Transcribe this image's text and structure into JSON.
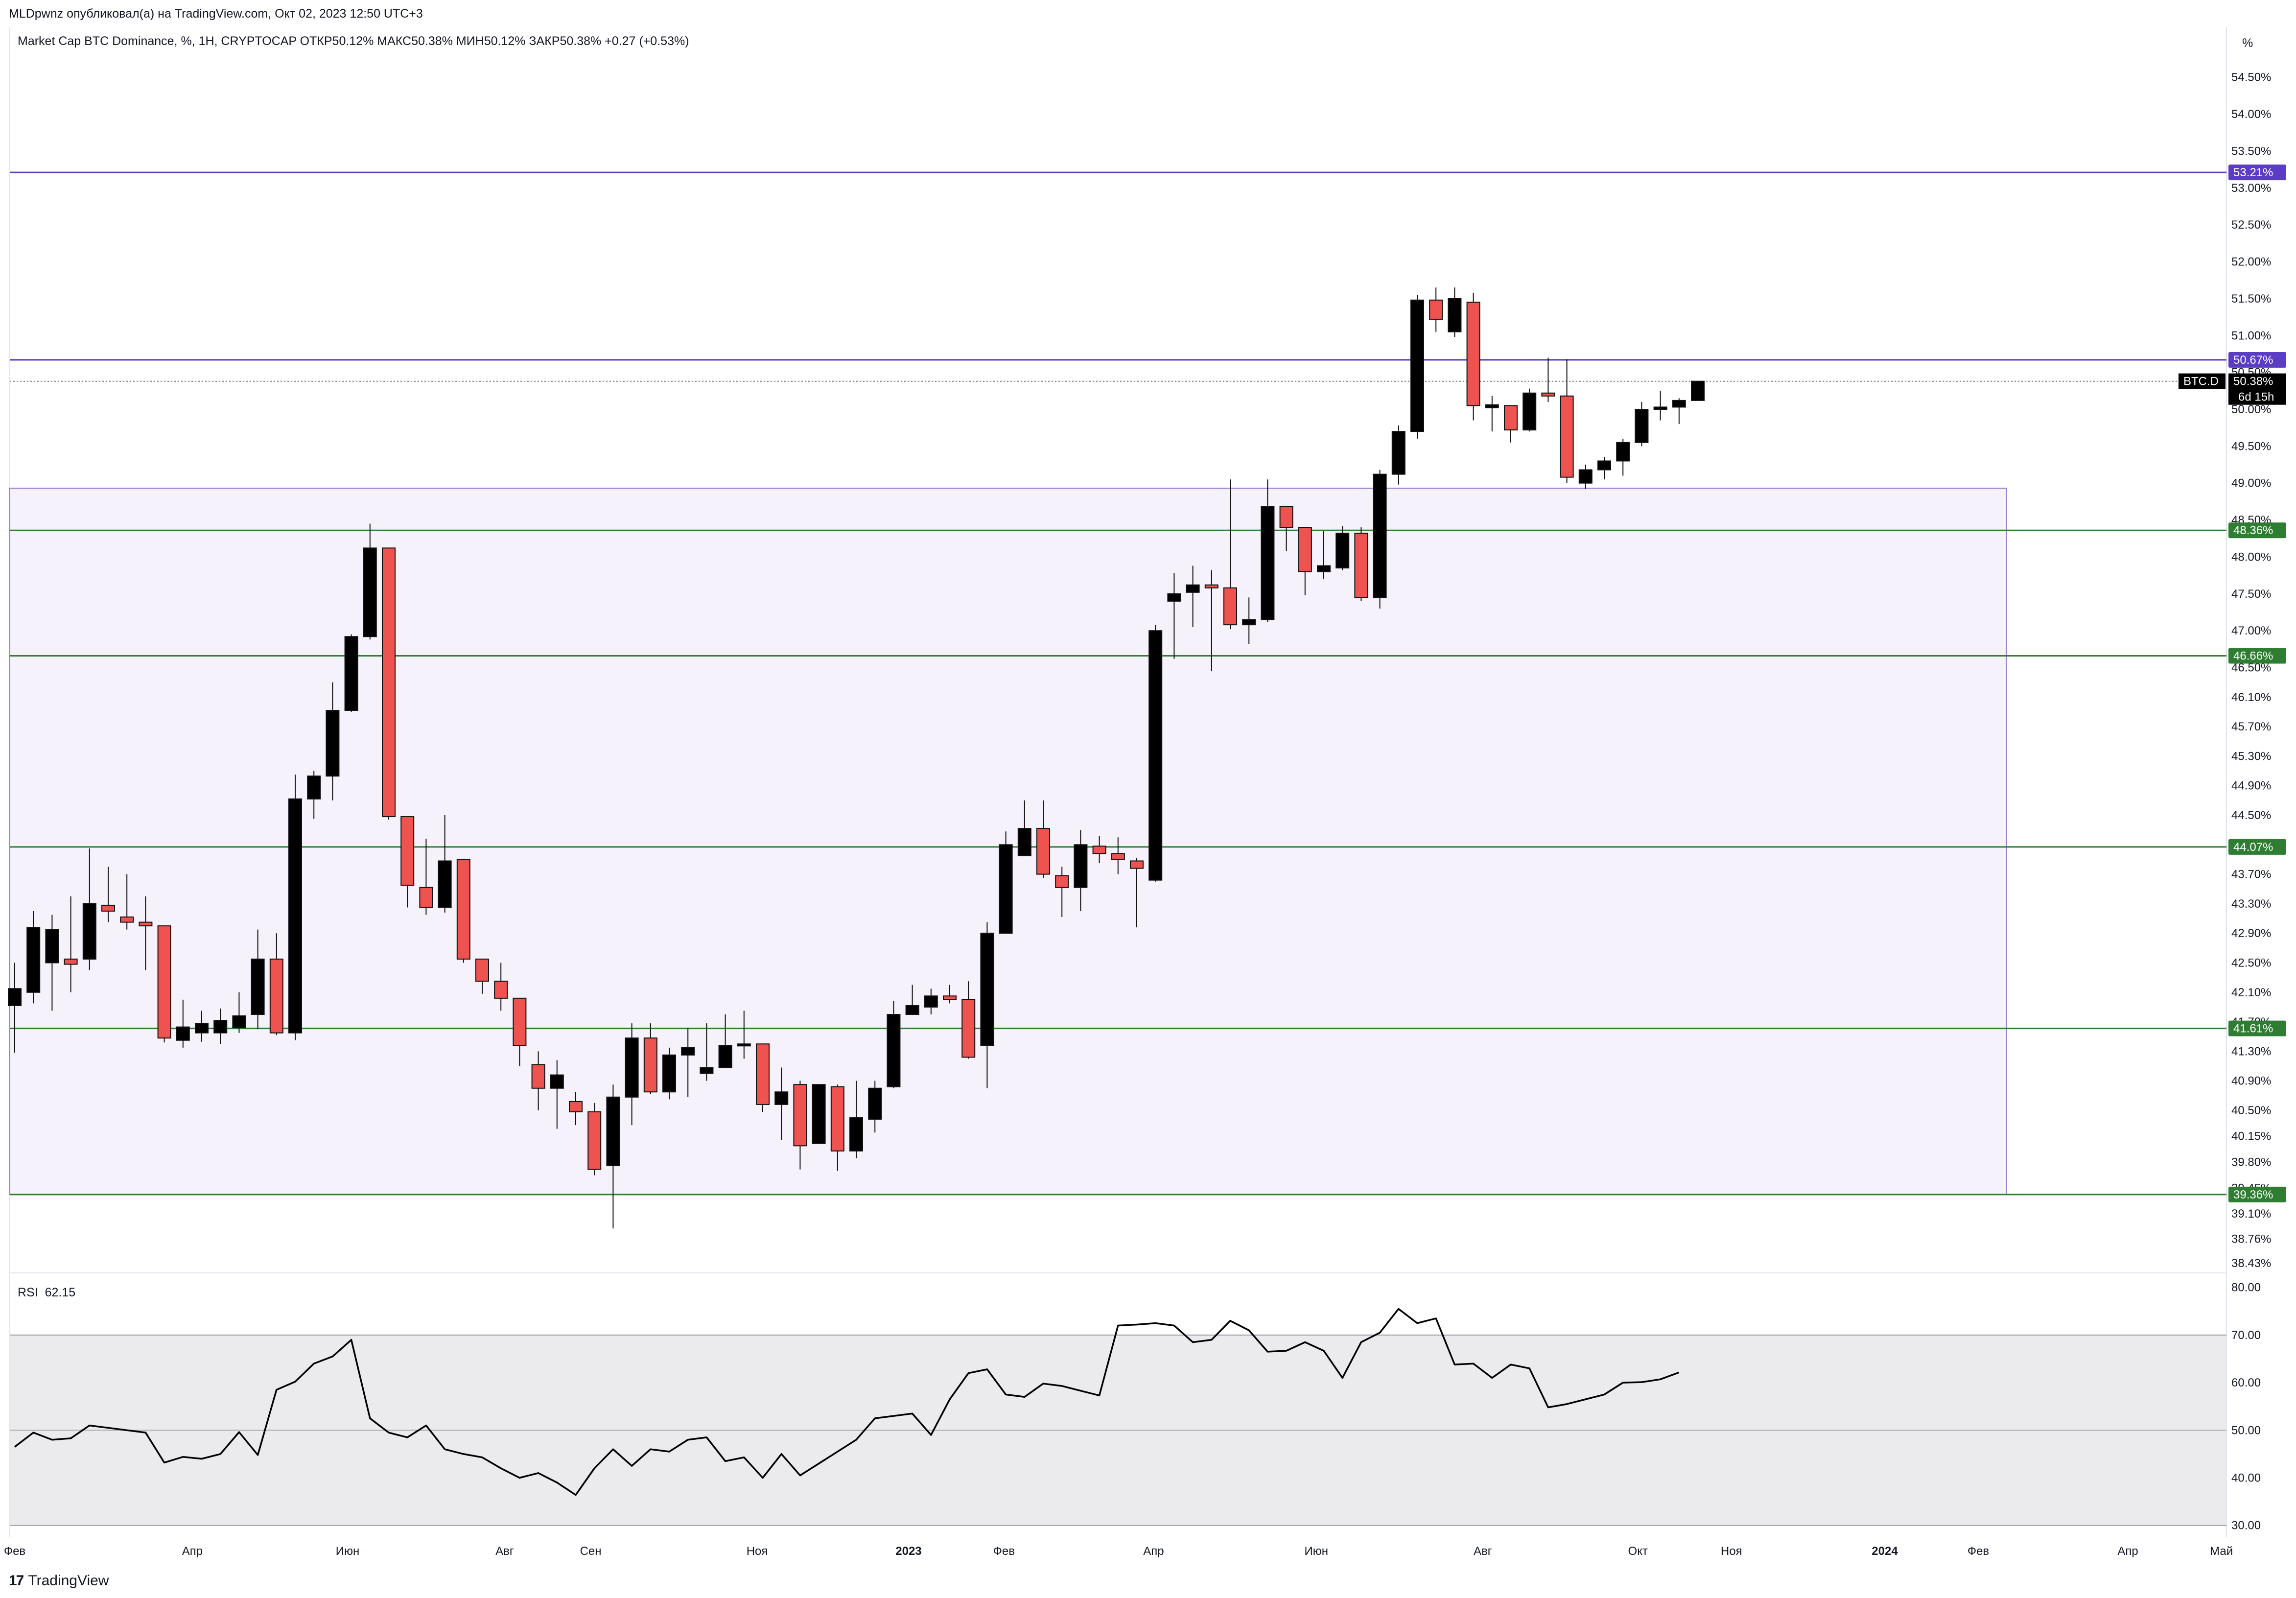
{
  "header": {
    "publisher": "MLDpwnz опубликовал(а) на TradingView.com, Окт 02, 2023 12:50 UTC+3",
    "legend": "Market Cap BTC Dominance, %, 1H, CRYPTOCAP  ОТКР50.12%  МАКС50.38%  МИН50.12%  ЗАКР50.38%  +0.27 (+0.53%)",
    "unit": "%"
  },
  "brand": {
    "name": "TradingView",
    "logo": "17"
  },
  "colors": {
    "bull": "#000000",
    "bear": "#ef5350",
    "level_purple": "#5b3cc4",
    "level_green": "#2e7d32",
    "zone_fill": "#f5f2fb",
    "zone_border": "#9575cd",
    "rsi_band": "#ebebed"
  },
  "chart_data": [
    {
      "type": "candlestick",
      "title": "Market Cap BTC Dominance, %, 1H, CRYPTOCAP",
      "ylim": [
        38.43,
        54.75
      ],
      "y_ticks": [
        "54.50%",
        "54.00%",
        "53.50%",
        "53.00%",
        "52.50%",
        "52.00%",
        "51.50%",
        "51.00%",
        "50.50%",
        "50.00%",
        "49.50%",
        "49.00%",
        "48.50%",
        "48.00%",
        "47.50%",
        "47.00%",
        "46.50%",
        "46.10%",
        "45.70%",
        "45.30%",
        "44.90%",
        "44.50%",
        "44.10%",
        "43.70%",
        "43.30%",
        "42.90%",
        "42.50%",
        "42.10%",
        "41.70%",
        "41.30%",
        "40.90%",
        "40.50%",
        "40.15%",
        "39.80%",
        "39.45%",
        "39.10%",
        "38.76%",
        "38.43%"
      ],
      "x_ticks": [
        {
          "t": 0.0,
          "label": "Фев",
          "bold": false
        },
        {
          "t": 9.5,
          "label": "Апр",
          "bold": false
        },
        {
          "t": 17.8,
          "label": "Июн",
          "bold": false
        },
        {
          "t": 26.2,
          "label": "Авг",
          "bold": false
        },
        {
          "t": 30.8,
          "label": "Сен",
          "bold": false
        },
        {
          "t": 39.7,
          "label": "Ноя",
          "bold": false
        },
        {
          "t": 47.8,
          "label": "2023",
          "bold": true
        },
        {
          "t": 52.9,
          "label": "Фев",
          "bold": false
        },
        {
          "t": 60.9,
          "label": "Апр",
          "bold": false
        },
        {
          "t": 69.6,
          "label": "Июн",
          "bold": false
        },
        {
          "t": 78.5,
          "label": "Авг",
          "bold": false
        },
        {
          "t": 86.8,
          "label": "Окт",
          "bold": false
        },
        {
          "t": 91.8,
          "label": "Ноя",
          "bold": false
        },
        {
          "t": 100.0,
          "label": "2024",
          "bold": true
        },
        {
          "t": 105.0,
          "label": "Фев",
          "bold": false
        },
        {
          "t": 113.0,
          "label": "Апр",
          "bold": false
        },
        {
          "t": 118.0,
          "label": "Май",
          "bold": false
        }
      ],
      "candles": [
        {
          "o": 41.92,
          "h": 42.5,
          "l": 41.28,
          "c": 42.15
        },
        {
          "o": 42.1,
          "h": 43.2,
          "l": 41.95,
          "c": 42.98
        },
        {
          "o": 42.5,
          "h": 43.15,
          "l": 41.85,
          "c": 42.95
        },
        {
          "o": 42.55,
          "h": 43.4,
          "l": 42.1,
          "c": 42.48
        },
        {
          "o": 42.55,
          "h": 44.05,
          "l": 42.4,
          "c": 43.3
        },
        {
          "o": 43.28,
          "h": 43.8,
          "l": 43.05,
          "c": 43.2
        },
        {
          "o": 43.12,
          "h": 43.7,
          "l": 42.95,
          "c": 43.05
        },
        {
          "o": 43.05,
          "h": 43.4,
          "l": 42.4,
          "c": 43.0
        },
        {
          "o": 43.0,
          "h": 43.0,
          "l": 41.42,
          "c": 41.48
        },
        {
          "o": 41.45,
          "h": 42.0,
          "l": 41.35,
          "c": 41.63
        },
        {
          "o": 41.55,
          "h": 41.85,
          "l": 41.43,
          "c": 41.68
        },
        {
          "o": 41.55,
          "h": 41.88,
          "l": 41.4,
          "c": 41.72
        },
        {
          "o": 41.62,
          "h": 42.1,
          "l": 41.55,
          "c": 41.78
        },
        {
          "o": 41.8,
          "h": 42.95,
          "l": 41.6,
          "c": 42.55
        },
        {
          "o": 42.55,
          "h": 42.9,
          "l": 41.52,
          "c": 41.55
        },
        {
          "o": 41.55,
          "h": 45.05,
          "l": 41.45,
          "c": 44.72
        },
        {
          "o": 44.72,
          "h": 45.1,
          "l": 44.45,
          "c": 45.03
        },
        {
          "o": 45.03,
          "h": 46.3,
          "l": 44.7,
          "c": 45.92
        },
        {
          "o": 45.92,
          "h": 46.95,
          "l": 45.9,
          "c": 46.92
        },
        {
          "o": 46.92,
          "h": 48.45,
          "l": 46.88,
          "c": 48.12
        },
        {
          "o": 48.12,
          "h": 48.12,
          "l": 44.44,
          "c": 44.48
        },
        {
          "o": 44.48,
          "h": 44.48,
          "l": 43.25,
          "c": 43.55
        },
        {
          "o": 43.52,
          "h": 44.18,
          "l": 43.15,
          "c": 43.25
        },
        {
          "o": 43.25,
          "h": 44.5,
          "l": 43.18,
          "c": 43.88
        },
        {
          "o": 43.9,
          "h": 43.9,
          "l": 42.5,
          "c": 42.55
        },
        {
          "o": 42.55,
          "h": 42.55,
          "l": 42.08,
          "c": 42.25
        },
        {
          "o": 42.25,
          "h": 42.5,
          "l": 41.85,
          "c": 42.02
        },
        {
          "o": 42.02,
          "h": 42.02,
          "l": 41.1,
          "c": 41.38
        },
        {
          "o": 41.12,
          "h": 41.3,
          "l": 40.5,
          "c": 40.8
        },
        {
          "o": 40.8,
          "h": 41.18,
          "l": 40.25,
          "c": 40.98
        },
        {
          "o": 40.62,
          "h": 40.75,
          "l": 40.3,
          "c": 40.48
        },
        {
          "o": 40.48,
          "h": 40.6,
          "l": 39.62,
          "c": 39.7
        },
        {
          "o": 39.75,
          "h": 40.85,
          "l": 38.9,
          "c": 40.68
        },
        {
          "o": 40.68,
          "h": 41.68,
          "l": 40.3,
          "c": 41.48
        },
        {
          "o": 41.48,
          "h": 41.68,
          "l": 40.72,
          "c": 40.75
        },
        {
          "o": 40.75,
          "h": 41.35,
          "l": 40.65,
          "c": 41.25
        },
        {
          "o": 41.25,
          "h": 41.62,
          "l": 40.68,
          "c": 41.35
        },
        {
          "o": 41.0,
          "h": 41.68,
          "l": 40.9,
          "c": 41.08
        },
        {
          "o": 41.08,
          "h": 41.8,
          "l": 41.1,
          "c": 41.38
        },
        {
          "o": 41.38,
          "h": 41.85,
          "l": 41.2,
          "c": 41.4
        },
        {
          "o": 41.4,
          "h": 41.4,
          "l": 40.48,
          "c": 40.58
        },
        {
          "o": 40.58,
          "h": 41.08,
          "l": 40.1,
          "c": 40.75
        },
        {
          "o": 40.85,
          "h": 40.9,
          "l": 39.7,
          "c": 40.02
        },
        {
          "o": 40.05,
          "h": 40.8,
          "l": 40.05,
          "c": 40.85
        },
        {
          "o": 40.82,
          "h": 40.85,
          "l": 39.68,
          "c": 39.95
        },
        {
          "o": 39.95,
          "h": 40.9,
          "l": 39.85,
          "c": 40.4
        },
        {
          "o": 40.38,
          "h": 40.9,
          "l": 40.2,
          "c": 40.8
        },
        {
          "o": 40.82,
          "h": 41.98,
          "l": 40.8,
          "c": 41.8
        },
        {
          "o": 41.8,
          "h": 42.2,
          "l": 41.82,
          "c": 41.92
        },
        {
          "o": 41.9,
          "h": 42.15,
          "l": 41.8,
          "c": 42.05
        },
        {
          "o": 42.05,
          "h": 42.2,
          "l": 41.95,
          "c": 42.0
        },
        {
          "o": 42.0,
          "h": 42.25,
          "l": 41.2,
          "c": 41.22
        },
        {
          "o": 41.38,
          "h": 43.05,
          "l": 40.8,
          "c": 42.9
        },
        {
          "o": 42.9,
          "h": 44.28,
          "l": 42.95,
          "c": 44.1
        },
        {
          "o": 43.95,
          "h": 44.7,
          "l": 43.98,
          "c": 44.32
        },
        {
          "o": 44.32,
          "h": 44.7,
          "l": 43.65,
          "c": 43.7
        },
        {
          "o": 43.68,
          "h": 43.8,
          "l": 43.12,
          "c": 43.52
        },
        {
          "o": 43.52,
          "h": 44.3,
          "l": 43.2,
          "c": 44.1
        },
        {
          "o": 44.08,
          "h": 44.22,
          "l": 43.85,
          "c": 43.98
        },
        {
          "o": 43.98,
          "h": 44.2,
          "l": 43.7,
          "c": 43.9
        },
        {
          "o": 43.88,
          "h": 43.92,
          "l": 42.98,
          "c": 43.78
        },
        {
          "o": 43.62,
          "h": 47.08,
          "l": 43.6,
          "c": 47.0
        },
        {
          "o": 47.4,
          "h": 47.78,
          "l": 46.62,
          "c": 47.5
        },
        {
          "o": 47.52,
          "h": 47.88,
          "l": 47.05,
          "c": 47.62
        },
        {
          "o": 47.62,
          "h": 47.82,
          "l": 46.45,
          "c": 47.58
        },
        {
          "o": 47.58,
          "h": 49.05,
          "l": 47.02,
          "c": 47.08
        },
        {
          "o": 47.08,
          "h": 47.45,
          "l": 46.82,
          "c": 47.15
        },
        {
          "o": 47.15,
          "h": 49.05,
          "l": 47.12,
          "c": 48.68
        },
        {
          "o": 48.68,
          "h": 48.68,
          "l": 48.08,
          "c": 48.4
        },
        {
          "o": 48.4,
          "h": 48.4,
          "l": 47.48,
          "c": 47.8
        },
        {
          "o": 47.8,
          "h": 48.35,
          "l": 47.7,
          "c": 47.88
        },
        {
          "o": 47.85,
          "h": 48.42,
          "l": 47.82,
          "c": 48.32
        },
        {
          "o": 48.32,
          "h": 48.4,
          "l": 47.4,
          "c": 47.45
        },
        {
          "o": 47.45,
          "h": 49.18,
          "l": 47.3,
          "c": 49.12
        },
        {
          "o": 49.12,
          "h": 49.78,
          "l": 48.98,
          "c": 49.7
        },
        {
          "o": 49.7,
          "h": 51.55,
          "l": 49.6,
          "c": 51.48
        },
        {
          "o": 51.48,
          "h": 51.65,
          "l": 51.05,
          "c": 51.22
        },
        {
          "o": 51.05,
          "h": 51.65,
          "l": 50.98,
          "c": 51.5
        },
        {
          "o": 51.45,
          "h": 51.58,
          "l": 49.85,
          "c": 50.05
        },
        {
          "o": 50.02,
          "h": 50.18,
          "l": 49.7,
          "c": 50.06
        },
        {
          "o": 50.05,
          "h": 50.05,
          "l": 49.55,
          "c": 49.72
        },
        {
          "o": 49.72,
          "h": 50.28,
          "l": 49.7,
          "c": 50.22
        },
        {
          "o": 50.22,
          "h": 50.7,
          "l": 50.1,
          "c": 50.18
        },
        {
          "o": 50.18,
          "h": 50.68,
          "l": 49.0,
          "c": 49.08
        },
        {
          "o": 49.0,
          "h": 49.25,
          "l": 48.92,
          "c": 49.18
        },
        {
          "o": 49.18,
          "h": 49.35,
          "l": 49.05,
          "c": 49.3
        },
        {
          "o": 49.3,
          "h": 49.6,
          "l": 49.1,
          "c": 49.55
        },
        {
          "o": 49.55,
          "h": 50.1,
          "l": 49.5,
          "c": 50.0
        },
        {
          "o": 50.0,
          "h": 50.25,
          "l": 49.85,
          "c": 50.03
        },
        {
          "o": 50.03,
          "h": 50.15,
          "l": 49.8,
          "c": 50.12
        },
        {
          "o": 50.12,
          "h": 50.38,
          "l": 50.12,
          "c": 50.38
        }
      ],
      "levels": [
        {
          "value": 53.21,
          "label": "53.21%",
          "color": "#5b3cc4"
        },
        {
          "value": 50.67,
          "label": "50.67%",
          "color": "#5b3cc4"
        },
        {
          "value": 48.36,
          "label": "48.36%",
          "color": "#2e7d32"
        },
        {
          "value": 46.66,
          "label": "46.66%",
          "color": "#2e7d32"
        },
        {
          "value": 44.07,
          "label": "44.07%",
          "color": "#2e7d32"
        },
        {
          "value": 41.61,
          "label": "41.61%",
          "color": "#2e7d32"
        },
        {
          "value": 39.36,
          "label": "39.36%",
          "color": "#2e7d32"
        }
      ],
      "zone": {
        "top": 48.93,
        "bottom": 39.36,
        "t_end": 106.5
      },
      "last_price": {
        "value": 50.38,
        "symbol": "BTC.D",
        "label": "50.38%",
        "countdown": "6d 15h"
      }
    },
    {
      "type": "line",
      "title": "RSI",
      "name": "RSI",
      "last_value": "62.15",
      "ylim": [
        27.5,
        81.0
      ],
      "y_ticks": [
        "80.00",
        "70.00",
        "60.00",
        "50.00",
        "40.00",
        "30.00"
      ],
      "band": [
        30,
        70
      ],
      "midline": 50,
      "values": [
        46.5,
        49.5,
        48.0,
        48.3,
        51.0,
        50.5,
        50.0,
        49.5,
        43.2,
        44.4,
        44.0,
        45.0,
        49.6,
        44.8,
        58.5,
        60.2,
        64.0,
        65.5,
        69.0,
        52.5,
        49.5,
        48.5,
        51.0,
        46.0,
        45.0,
        44.3,
        42.0,
        40.0,
        41.0,
        39.0,
        36.4,
        42.0,
        46.0,
        42.5,
        46.0,
        45.5,
        48.0,
        48.5,
        43.5,
        44.3,
        40.0,
        45.0,
        40.5,
        43.0,
        45.5,
        48.0,
        52.5,
        53.0,
        53.5,
        49.0,
        56.5,
        62.0,
        62.8,
        57.5,
        57.0,
        59.8,
        59.3,
        58.3,
        57.3,
        72.0,
        72.2,
        72.5,
        72.0,
        68.5,
        69.0,
        73.0,
        71.0,
        66.5,
        66.7,
        68.5,
        66.7,
        61.0,
        68.5,
        70.5,
        75.5,
        72.5,
        73.5,
        63.8,
        64.0,
        61.0,
        63.8,
        63.0,
        54.8,
        55.5,
        56.5,
        57.5,
        60.0,
        60.1,
        60.7,
        62.15
      ]
    }
  ]
}
